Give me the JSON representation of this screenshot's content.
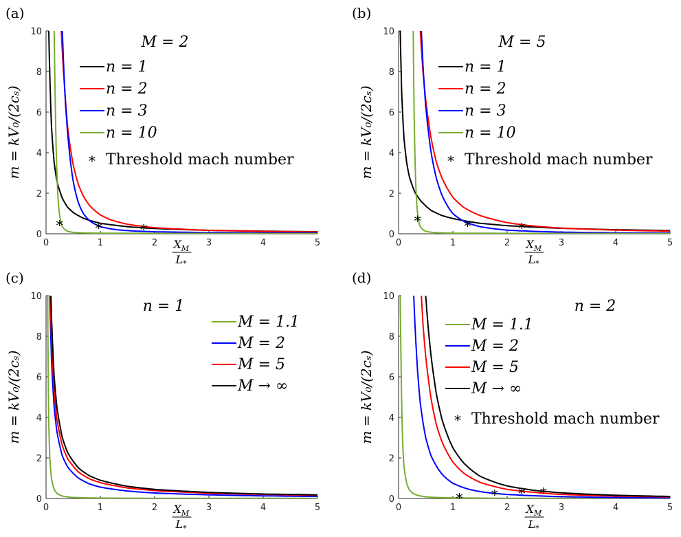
{
  "chart_data": [
    {
      "type": "line",
      "panel_label": "(a)",
      "title": "M = 2",
      "ylabel": "m = kV₀/(2cₛ)",
      "xlabel_num": "X",
      "xlabel_num_sub": "M",
      "xlabel_den": "L",
      "xlabel_den_sub": "*",
      "xlim": [
        0,
        5
      ],
      "ylim": [
        0,
        10
      ],
      "xticks": [
        "0",
        "1",
        "2",
        "3",
        "4",
        "5"
      ],
      "yticks": [
        "0",
        "2",
        "4",
        "6",
        "8",
        "10"
      ],
      "legend_position": "top-center",
      "grid": false,
      "series": [
        {
          "name": "n = 1",
          "color": "#000000",
          "x": [
            0.05,
            0.1,
            0.15,
            0.2,
            0.3,
            0.4,
            0.5,
            0.7,
            1.0,
            1.5,
            2.0,
            3.0,
            4.0,
            5.0
          ],
          "y": [
            10,
            5.3,
            3.5,
            2.6,
            1.75,
            1.3,
            1.05,
            0.75,
            0.52,
            0.35,
            0.26,
            0.17,
            0.13,
            0.1
          ]
        },
        {
          "name": "n = 2",
          "color": "#ff0000",
          "x": [
            0.28,
            0.35,
            0.4,
            0.5,
            0.6,
            0.7,
            0.8,
            1.0,
            1.2,
            1.5,
            2.0,
            3.0,
            4.0,
            5.0
          ],
          "y": [
            10,
            6.9,
            5.2,
            3.4,
            2.4,
            1.8,
            1.4,
            0.93,
            0.68,
            0.47,
            0.3,
            0.17,
            0.12,
            0.09
          ]
        },
        {
          "name": "n = 3",
          "color": "#0000ff",
          "x": [
            0.3,
            0.35,
            0.4,
            0.5,
            0.6,
            0.7,
            0.8,
            1.0,
            1.3,
            1.6,
            2.0,
            3.0,
            4.0,
            5.0
          ],
          "y": [
            10,
            6.8,
            4.9,
            2.6,
            1.5,
            0.95,
            0.65,
            0.35,
            0.2,
            0.14,
            0.1,
            0.06,
            0.05,
            0.04
          ]
        },
        {
          "name": "n = 10",
          "color": "#77ac30",
          "x": [
            0.15,
            0.17,
            0.19,
            0.22,
            0.25,
            0.3,
            0.4,
            0.5,
            0.7,
            1.0,
            2.0,
            3.0,
            5.0
          ],
          "y": [
            10,
            6.5,
            3.9,
            1.8,
            0.9,
            0.35,
            0.12,
            0.07,
            0.04,
            0.03,
            0.02,
            0.015,
            0.01
          ]
        }
      ],
      "threshold_label": "Threshold mach number",
      "threshold_points": {
        "x": [
          0.25,
          0.97,
          1.8
        ],
        "y": [
          0.45,
          0.33,
          0.25
        ]
      }
    },
    {
      "type": "line",
      "panel_label": "(b)",
      "title": "M = 5",
      "ylabel": "m = kV₀/(2cₛ)",
      "xlabel_num": "X",
      "xlabel_num_sub": "M",
      "xlabel_den": "L",
      "xlabel_den_sub": "*",
      "xlim": [
        0,
        5
      ],
      "ylim": [
        0,
        10
      ],
      "xticks": [
        "0",
        "1",
        "2",
        "3",
        "4",
        "5"
      ],
      "yticks": [
        "0",
        "2",
        "4",
        "6",
        "8",
        "10"
      ],
      "legend_position": "top-right",
      "grid": false,
      "series": [
        {
          "name": "n = 1",
          "color": "#000000",
          "x": [
            0.03,
            0.06,
            0.1,
            0.15,
            0.2,
            0.3,
            0.4,
            0.6,
            0.8,
            1.0,
            1.5,
            2.0,
            3.0,
            4.0,
            5.0
          ],
          "y": [
            10,
            6.8,
            4.7,
            3.5,
            2.8,
            2.05,
            1.65,
            1.15,
            0.9,
            0.75,
            0.52,
            0.4,
            0.27,
            0.2,
            0.16
          ]
        },
        {
          "name": "n = 2",
          "color": "#ff0000",
          "x": [
            0.4,
            0.45,
            0.5,
            0.6,
            0.7,
            0.8,
            1.0,
            1.2,
            1.5,
            2.0,
            2.5,
            3.0,
            4.0,
            5.0
          ],
          "y": [
            10,
            8.0,
            6.6,
            4.7,
            3.5,
            2.75,
            1.8,
            1.3,
            0.9,
            0.55,
            0.38,
            0.28,
            0.18,
            0.13
          ]
        },
        {
          "name": "n = 3",
          "color": "#0000ff",
          "x": [
            0.42,
            0.45,
            0.5,
            0.6,
            0.7,
            0.8,
            1.0,
            1.2,
            1.5,
            2.0,
            3.0,
            4.0,
            5.0
          ],
          "y": [
            10,
            8.3,
            6.3,
            4.0,
            2.7,
            1.9,
            1.0,
            0.62,
            0.35,
            0.18,
            0.08,
            0.05,
            0.035
          ]
        },
        {
          "name": "n = 10",
          "color": "#77ac30",
          "x": [
            0.27,
            0.29,
            0.31,
            0.33,
            0.35,
            0.4,
            0.5,
            0.7,
            1.0,
            2.0,
            3.0,
            5.0
          ],
          "y": [
            10,
            5.5,
            3.0,
            1.7,
            1.0,
            0.35,
            0.12,
            0.05,
            0.03,
            0.02,
            0.015,
            0.01
          ]
        }
      ],
      "threshold_label": "Threshold mach number",
      "threshold_points": {
        "x": [
          0.35,
          1.27,
          2.27
        ],
        "y": [
          0.68,
          0.43,
          0.33
        ]
      }
    },
    {
      "type": "line",
      "panel_label": "(c)",
      "title": "n = 1",
      "ylabel": "m = kV₀/(2cₛ)",
      "xlabel_num": "X",
      "xlabel_num_sub": "M",
      "xlabel_den": "L",
      "xlabel_den_sub": "*",
      "xlim": [
        0,
        5
      ],
      "ylim": [
        0,
        10
      ],
      "xticks": [
        "0",
        "1",
        "2",
        "3",
        "4",
        "5"
      ],
      "yticks": [
        "0",
        "2",
        "4",
        "6",
        "8",
        "10"
      ],
      "legend_position": "top-right",
      "grid": false,
      "series": [
        {
          "name": "M = 1.1",
          "color": "#77ac30",
          "x": [
            0.03,
            0.05,
            0.07,
            0.1,
            0.15,
            0.2,
            0.3,
            0.5,
            1.0,
            2.0,
            3.0,
            5.0
          ],
          "y": [
            10,
            3.8,
            2.0,
            1.0,
            0.45,
            0.26,
            0.12,
            0.05,
            0.02,
            0.01,
            0.008,
            0.005
          ]
        },
        {
          "name": "M = 2",
          "color": "#0000ff",
          "x": [
            0.07,
            0.1,
            0.15,
            0.2,
            0.3,
            0.4,
            0.6,
            0.8,
            1.0,
            1.5,
            2.0,
            3.0,
            4.0,
            5.0
          ],
          "y": [
            10,
            6.9,
            4.5,
            3.3,
            2.1,
            1.55,
            1.0,
            0.72,
            0.56,
            0.37,
            0.27,
            0.18,
            0.13,
            0.1
          ]
        },
        {
          "name": "M = 5",
          "color": "#ff0000",
          "x": [
            0.08,
            0.1,
            0.15,
            0.2,
            0.3,
            0.4,
            0.6,
            0.8,
            1.0,
            1.5,
            2.0,
            3.0,
            4.0,
            5.0
          ],
          "y": [
            10,
            8.0,
            5.3,
            3.9,
            2.6,
            1.95,
            1.3,
            0.97,
            0.78,
            0.52,
            0.39,
            0.26,
            0.2,
            0.16
          ]
        },
        {
          "name": "M → ∞",
          "color": "#000000",
          "x": [
            0.09,
            0.1,
            0.15,
            0.2,
            0.3,
            0.4,
            0.6,
            0.8,
            1.0,
            1.5,
            2.0,
            3.0,
            4.0,
            5.0
          ],
          "y": [
            10,
            9.0,
            6.0,
            4.5,
            3.0,
            2.25,
            1.5,
            1.12,
            0.9,
            0.6,
            0.45,
            0.3,
            0.22,
            0.18
          ]
        }
      ]
    },
    {
      "type": "line",
      "panel_label": "(d)",
      "title": "n = 2",
      "ylabel": "m = kV₀/(2cₛ)",
      "xlabel_num": "X",
      "xlabel_num_sub": "M",
      "xlabel_den": "L",
      "xlabel_den_sub": "*",
      "xlim": [
        0,
        5
      ],
      "ylim": [
        0,
        10
      ],
      "xticks": [
        "0",
        "1",
        "2",
        "3",
        "4",
        "5"
      ],
      "yticks": [
        "0",
        "2",
        "4",
        "6",
        "8",
        "10"
      ],
      "legend_position": "top-right",
      "grid": false,
      "series": [
        {
          "name": "M = 1.1",
          "color": "#77ac30",
          "x": [
            0.03,
            0.05,
            0.08,
            0.1,
            0.15,
            0.2,
            0.3,
            0.5,
            0.7,
            1.0,
            2.0,
            3.0,
            5.0
          ],
          "y": [
            10,
            6.0,
            2.5,
            1.6,
            0.75,
            0.42,
            0.2,
            0.08,
            0.05,
            0.03,
            0.01,
            0.008,
            0.005
          ]
        },
        {
          "name": "M = 2",
          "color": "#0000ff",
          "x": [
            0.28,
            0.3,
            0.35,
            0.4,
            0.5,
            0.6,
            0.8,
            1.0,
            1.3,
            1.6,
            2.0,
            3.0,
            4.0,
            5.0
          ],
          "y": [
            10,
            8.7,
            6.3,
            4.7,
            3.0,
            2.1,
            1.2,
            0.75,
            0.45,
            0.3,
            0.2,
            0.09,
            0.05,
            0.035
          ]
        },
        {
          "name": "M = 5",
          "color": "#ff0000",
          "x": [
            0.42,
            0.45,
            0.5,
            0.6,
            0.7,
            0.8,
            1.0,
            1.2,
            1.5,
            2.0,
            2.5,
            3.0,
            4.0,
            5.0
          ],
          "y": [
            10,
            8.6,
            7.0,
            4.9,
            3.6,
            2.8,
            1.8,
            1.25,
            0.8,
            0.45,
            0.3,
            0.2,
            0.12,
            0.08
          ]
        },
        {
          "name": "M → ∞",
          "color": "#000000",
          "x": [
            0.5,
            0.55,
            0.6,
            0.7,
            0.8,
            1.0,
            1.2,
            1.5,
            2.0,
            2.5,
            3.0,
            4.0,
            5.0
          ],
          "y": [
            10,
            8.3,
            7.0,
            5.1,
            3.9,
            2.5,
            1.75,
            1.1,
            0.62,
            0.4,
            0.28,
            0.16,
            0.1
          ]
        }
      ],
      "threshold_label": "Threshold mach number",
      "threshold_points": {
        "x": [
          1.12,
          1.77,
          2.27,
          2.67
        ],
        "y": [
          0.05,
          0.22,
          0.28,
          0.33
        ]
      }
    }
  ]
}
